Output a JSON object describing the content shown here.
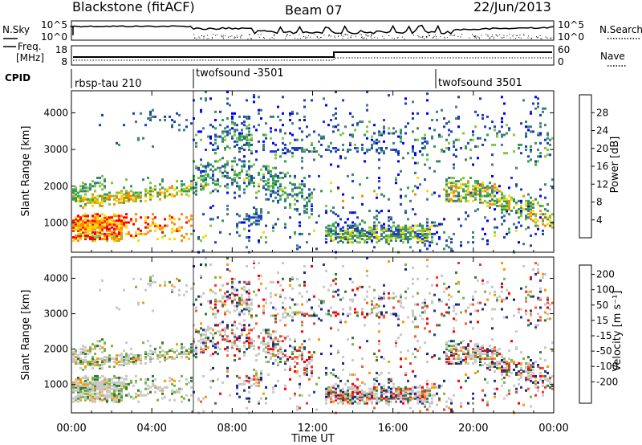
{
  "header": {
    "station": "Blackstone (fitACF)",
    "beam": "Beam 07",
    "date": "22/Jun/2013"
  },
  "noise_panel": {
    "left_label": "N.Sky",
    "left_ticks": [
      "10^5",
      "10^0"
    ],
    "right_label": "N.Search",
    "right_ticks": [
      "10^5",
      "10^0"
    ]
  },
  "freq_panel": {
    "left_label_1": "Freq.",
    "left_label_2": "[MHz]",
    "left_ticks": [
      "18",
      "8"
    ],
    "right_label": "Nave",
    "right_ticks": [
      "60",
      "0"
    ]
  },
  "cpid_panel": {
    "label": "CPID",
    "segments": [
      "rbsp-tau 210",
      "twofsound -3501",
      "twofsound 3501"
    ]
  },
  "chart_data": [
    {
      "type": "heatmap",
      "title": "",
      "xlabel": "Time UT",
      "ylabel": "Slant Range [km]",
      "x_ticks": [
        "00:00",
        "04:00",
        "08:00",
        "12:00",
        "16:00",
        "20:00",
        "00:00"
      ],
      "y_ticks": [
        "1000",
        "2000",
        "3000",
        "4000"
      ],
      "ylim": [
        200,
        4600
      ],
      "colorbar": {
        "label": "Power [dB]",
        "range": [
          0,
          32
        ],
        "ticks": [
          "4",
          "8",
          "12",
          "16",
          "20",
          "24",
          "28"
        ],
        "colors": [
          "#0000ff",
          "#1f3fbf",
          "#3f7f7f",
          "#2fa04f",
          "#7fc83f",
          "#ffd700",
          "#ff8c00",
          "#ff0000"
        ]
      }
    },
    {
      "type": "heatmap",
      "title": "",
      "xlabel": "Time UT",
      "ylabel": "Slant Range [km]",
      "x_ticks": [
        "00:00",
        "04:00",
        "08:00",
        "12:00",
        "16:00",
        "20:00",
        "00:00"
      ],
      "y_ticks": [
        "1000",
        "2000",
        "3000",
        "4000"
      ],
      "ylim": [
        200,
        4600
      ],
      "colorbar": {
        "label": "Velocity [m s⁻¹]",
        "ticks": [
          "200",
          "100",
          "50",
          "15",
          "-15",
          "-50",
          "-100",
          "-200"
        ],
        "colors": [
          "#1a237e",
          "#283593",
          "#2e7d32",
          "#7cb342",
          "#c8c8c8",
          "#ff9800",
          "#ff5722",
          "#e53935",
          "#ff0000"
        ]
      }
    }
  ],
  "x_axis_label": "Time UT"
}
